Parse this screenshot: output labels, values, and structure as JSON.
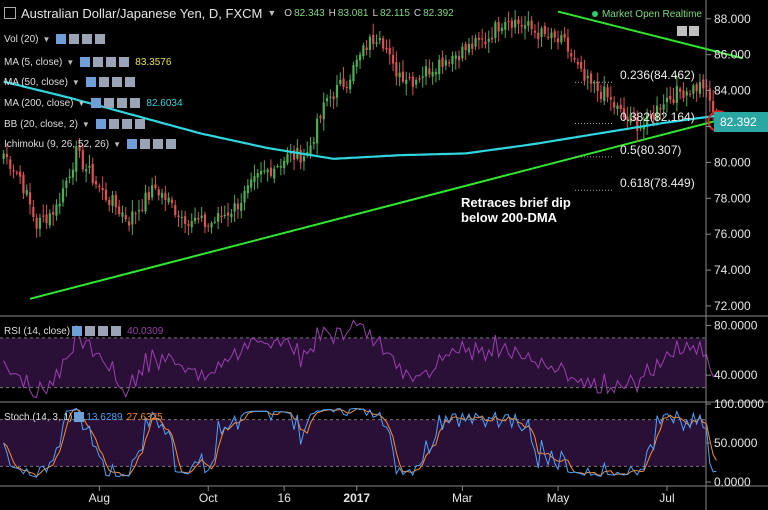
{
  "header": {
    "title": "Australian Dollar/Japanese Yen, D, FXCM",
    "open_label": "O",
    "open": "82.343",
    "high_label": "H",
    "high": "83.081",
    "low_label": "L",
    "low": "82.115",
    "close_label": "C",
    "close": "82.392",
    "market_status": "Market Open Realtime"
  },
  "indicators": [
    {
      "label": "Vol (20)",
      "value": "",
      "color": "#dddddd"
    },
    {
      "label": "MA (5, close)",
      "value": "83.3576",
      "color": "#e8e43a"
    },
    {
      "label": "MA (50, close)",
      "value": "",
      "color": "#dddddd"
    },
    {
      "label": "MA (200, close)",
      "value": "82.6034",
      "color": "#2fd6e0"
    },
    {
      "label": "BB (20, close, 2)",
      "value": "",
      "color": "#dddddd"
    },
    {
      "label": "Ichimoku (9, 26, 52, 26)",
      "value": "",
      "color": "#dddddd"
    }
  ],
  "price_bubble": "82.392",
  "annotation": {
    "line1": "Retraces brief dip",
    "line2": "below 200-DMA"
  },
  "fib_levels": [
    {
      "label": "0.236(84.462)",
      "price": 84.462
    },
    {
      "label": "0.382(82.164)",
      "price": 82.164
    },
    {
      "label": "0.5(80.307)",
      "price": 80.307
    },
    {
      "label": "0.618(78.449)",
      "price": 78.449
    }
  ],
  "rsi_label": "RSI (14, close)",
  "rsi_value": "40.0309",
  "stoch_label": "Stoch (14, 3, 1)",
  "stoch_values": [
    "13.6289",
    "27.6325"
  ],
  "colors": {
    "up": "#4caf50",
    "down": "#e05050",
    "ma200": "#2fd6e0",
    "trend": "#2ee82e",
    "rsi": "#9b3fb0",
    "stoch_k": "#4aa3ff",
    "stoch_d": "#ff8a2a"
  },
  "chart_data": [
    {
      "type": "candlestick",
      "title": "Australian Dollar/Japanese Yen, D, FXCM",
      "x_ticks": [
        "Aug",
        "Oct",
        "16",
        "2017",
        "Mar",
        "May",
        "Jul"
      ],
      "y_ticks": [
        "88.000",
        "86.000",
        "84.000",
        "82.000",
        "80.000",
        "78.000",
        "76.000",
        "74.000",
        "72.000"
      ],
      "ylim": [
        71.5,
        88.6
      ],
      "anchors": [
        {
          "i": 0,
          "close": 80.5
        },
        {
          "i": 5,
          "close": 79.2
        },
        {
          "i": 10,
          "close": 76.5
        },
        {
          "i": 16,
          "close": 77.5
        },
        {
          "i": 22,
          "close": 80.5
        },
        {
          "i": 30,
          "close": 78.3
        },
        {
          "i": 38,
          "close": 76.8
        },
        {
          "i": 46,
          "close": 78.6
        },
        {
          "i": 54,
          "close": 77.0
        },
        {
          "i": 62,
          "close": 76.5
        },
        {
          "i": 70,
          "close": 77.5
        },
        {
          "i": 78,
          "close": 79.3
        },
        {
          "i": 86,
          "close": 80.3
        },
        {
          "i": 92,
          "close": 80.5
        },
        {
          "i": 98,
          "close": 83.5
        },
        {
          "i": 104,
          "close": 84.6
        },
        {
          "i": 110,
          "close": 86.5
        },
        {
          "i": 114,
          "close": 87.3
        },
        {
          "i": 118,
          "close": 85.2
        },
        {
          "i": 124,
          "close": 84.6
        },
        {
          "i": 132,
          "close": 85.6
        },
        {
          "i": 140,
          "close": 86.3
        },
        {
          "i": 146,
          "close": 86.8
        },
        {
          "i": 152,
          "close": 88.1
        },
        {
          "i": 158,
          "close": 87.6
        },
        {
          "i": 164,
          "close": 87.0
        },
        {
          "i": 170,
          "close": 86.6
        },
        {
          "i": 176,
          "close": 84.5
        },
        {
          "i": 182,
          "close": 83.8
        },
        {
          "i": 188,
          "close": 82.5
        },
        {
          "i": 194,
          "close": 82.0
        },
        {
          "i": 200,
          "close": 83.5
        },
        {
          "i": 206,
          "close": 84.0
        },
        {
          "i": 212,
          "close": 84.3
        },
        {
          "i": 216,
          "close": 82.4
        }
      ],
      "ma200": [
        {
          "i": 0,
          "v": 84.5
        },
        {
          "i": 20,
          "v": 83.6
        },
        {
          "i": 40,
          "v": 82.6
        },
        {
          "i": 60,
          "v": 81.6
        },
        {
          "i": 80,
          "v": 80.8
        },
        {
          "i": 100,
          "v": 80.2
        },
        {
          "i": 120,
          "v": 80.4
        },
        {
          "i": 140,
          "v": 80.5
        },
        {
          "i": 160,
          "v": 81.0
        },
        {
          "i": 180,
          "v": 81.6
        },
        {
          "i": 200,
          "v": 82.2
        },
        {
          "i": 216,
          "v": 82.6
        }
      ],
      "trendlines": [
        {
          "name": "support",
          "from": {
            "i": 8,
            "v": 72.4
          },
          "to": {
            "i": 224,
            "v": 82.7
          }
        },
        {
          "name": "resistance",
          "from": {
            "i": 168,
            "v": 88.4
          },
          "to": {
            "i": 224,
            "v": 85.8
          }
        }
      ]
    },
    {
      "type": "line",
      "title": "RSI (14, close)",
      "y_ticks": [
        "80.0000",
        "40.0000"
      ],
      "ylim": [
        20,
        86
      ],
      "levels": [
        70,
        30
      ],
      "last": 40.0309
    },
    {
      "type": "line",
      "title": "Stoch (14, 3, 1)",
      "y_ticks": [
        "100.0000",
        "50.0000",
        "0.0000"
      ],
      "ylim": [
        0,
        100
      ],
      "levels": [
        80,
        20
      ],
      "last_k": 13.6289,
      "last_d": 27.6325
    }
  ]
}
